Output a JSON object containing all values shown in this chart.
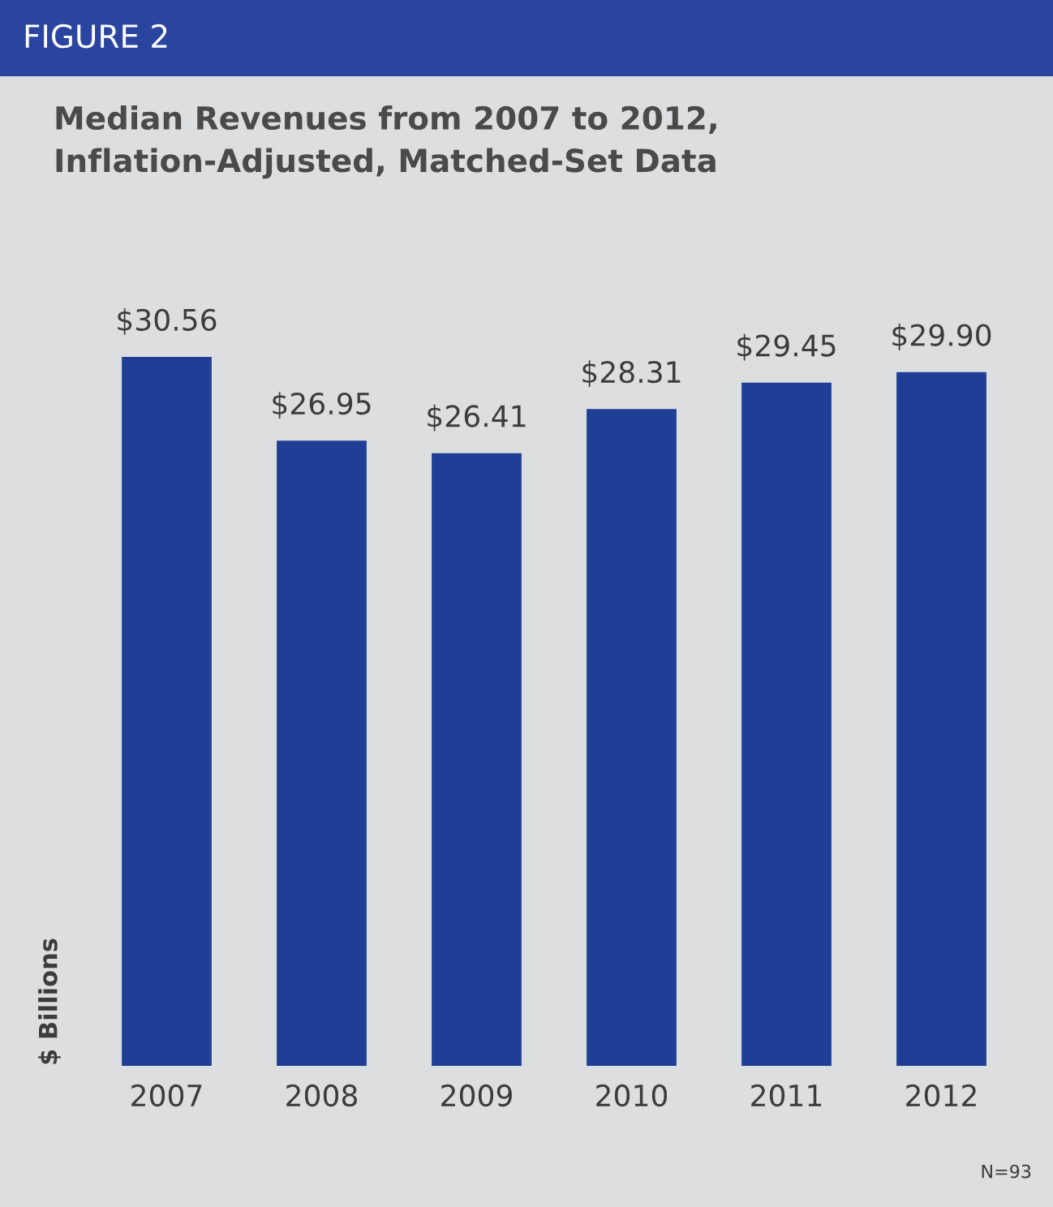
{
  "chart_data": {
    "type": "bar",
    "title": "Median Revenues from 2007 to 2012,\nInflation-Adjusted, Matched-Set Data",
    "ylabel": "$ Billions",
    "annotations": [
      "FIGURE 2",
      "N=93"
    ],
    "categories": [
      "2007",
      "2008",
      "2009",
      "2010",
      "2011",
      "2012"
    ],
    "values": [
      30.56,
      26.95,
      26.41,
      28.31,
      29.45,
      29.9
    ],
    "value_labels": [
      "$30.56",
      "$26.95",
      "$26.41",
      "$28.31",
      "$29.45",
      "$29.90"
    ],
    "color": "#1f3f96",
    "relative": false,
    "grid": false,
    "legend": false
  }
}
